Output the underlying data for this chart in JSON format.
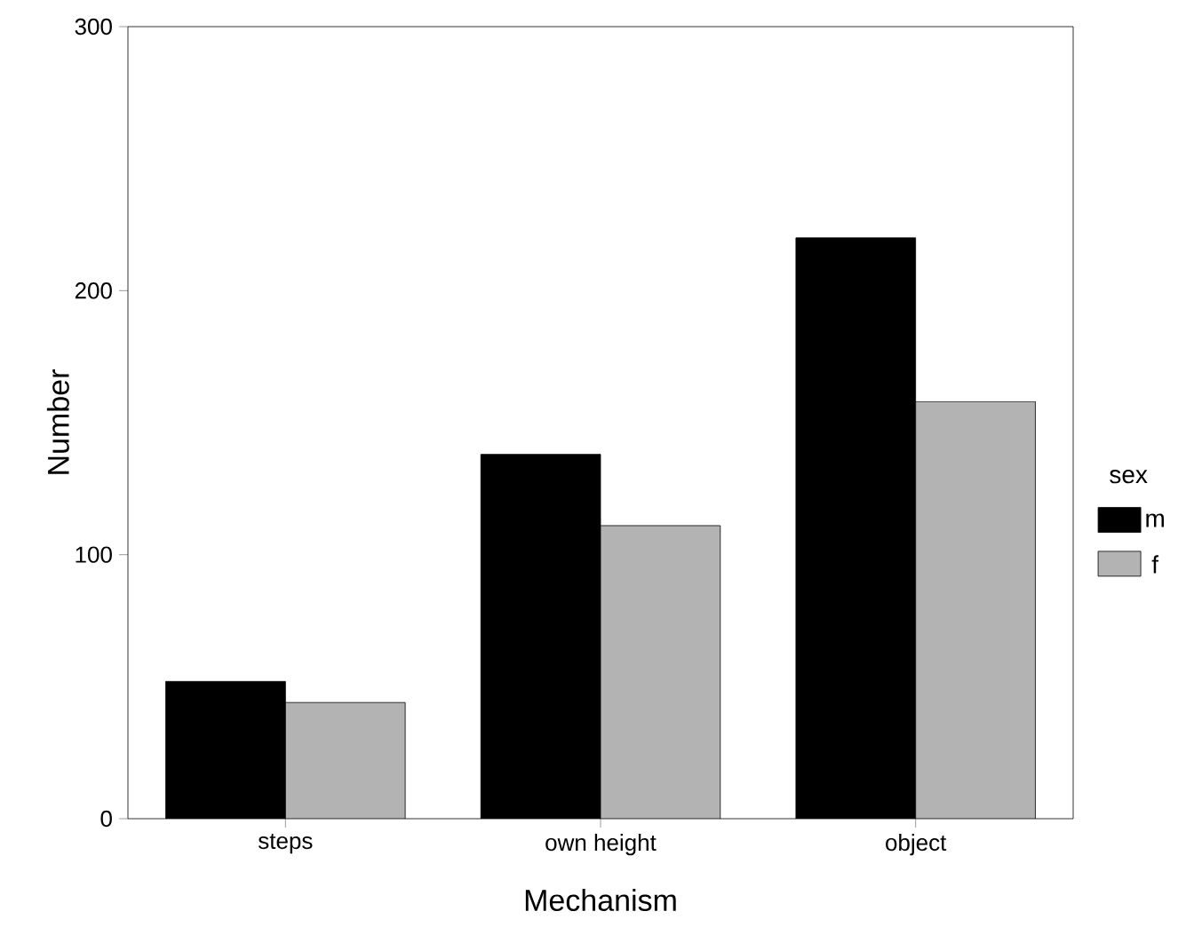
{
  "chart_data": {
    "type": "bar",
    "xlabel": "Mechanism",
    "ylabel": "Number",
    "legend_title": "sex",
    "categories": [
      "steps",
      "own height",
      "object"
    ],
    "series": [
      {
        "name": "m",
        "color": "#000000",
        "values": [
          52,
          138,
          220
        ]
      },
      {
        "name": "f",
        "color": "#b3b3b3",
        "values": [
          44,
          111,
          158
        ]
      }
    ],
    "ylim": [
      0,
      300
    ],
    "yticks": [
      0,
      100,
      200,
      300
    ],
    "legend": "right"
  }
}
